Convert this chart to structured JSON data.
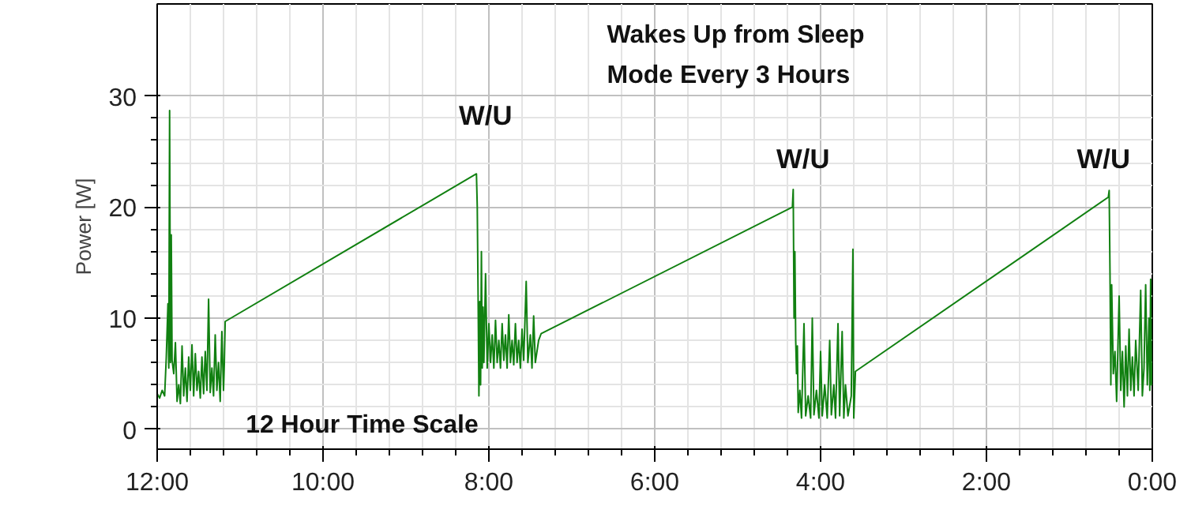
{
  "chart_data": {
    "type": "line",
    "ylabel": "Power [W]",
    "xlim": [
      12,
      0
    ],
    "xticks": [
      {
        "value": 12,
        "label": "12:00"
      },
      {
        "value": 10,
        "label": "10:00"
      },
      {
        "value": 8,
        "label": "8:00"
      },
      {
        "value": 6,
        "label": "6:00"
      },
      {
        "value": 4,
        "label": "4:00"
      },
      {
        "value": 2,
        "label": "2:00"
      },
      {
        "value": 0,
        "label": "0:00"
      }
    ],
    "ylim": [
      -1.8,
      38.3
    ],
    "yticks": [
      0,
      10,
      20,
      30
    ],
    "grid": true,
    "annotations": [
      "W/U",
      "W/U",
      "W/U",
      "Wakes Up from Sleep\nMode Every 3 Hours",
      "12 Hour Time Scale"
    ],
    "series": [
      {
        "color": "#118011",
        "x": [
          12.0,
          11.97,
          11.94,
          11.91,
          11.89,
          11.87,
          11.86,
          11.85,
          11.84,
          11.83,
          11.82,
          11.8,
          11.78,
          11.76,
          11.74,
          11.72,
          11.7,
          11.68,
          11.66,
          11.64,
          11.62,
          11.6,
          11.58,
          11.56,
          11.54,
          11.52,
          11.5,
          11.48,
          11.46,
          11.44,
          11.42,
          11.4,
          11.38,
          11.36,
          11.34,
          11.32,
          11.3,
          11.28,
          11.26,
          11.24,
          11.22,
          11.2,
          11.19,
          11.18,
          8.15,
          8.14,
          8.13,
          8.12,
          8.11,
          8.1,
          8.09,
          8.08,
          8.07,
          8.06,
          8.04,
          8.02,
          8.0,
          7.98,
          7.96,
          7.94,
          7.92,
          7.9,
          7.88,
          7.86,
          7.84,
          7.82,
          7.8,
          7.78,
          7.76,
          7.74,
          7.72,
          7.7,
          7.68,
          7.66,
          7.64,
          7.62,
          7.6,
          7.58,
          7.55,
          7.53,
          7.5,
          7.48,
          7.46,
          7.44,
          7.4,
          7.37,
          4.34,
          4.33,
          4.32,
          4.31,
          4.3,
          4.29,
          4.28,
          4.27,
          4.25,
          4.23,
          4.2,
          4.18,
          4.15,
          4.12,
          4.1,
          4.08,
          4.05,
          4.02,
          4.0,
          3.98,
          3.95,
          3.92,
          3.89,
          3.87,
          3.84,
          3.82,
          3.79,
          3.77,
          3.74,
          3.72,
          3.7,
          3.67,
          3.63,
          3.61,
          3.6,
          3.59,
          3.58,
          0.53,
          0.52,
          0.51,
          0.5,
          0.49,
          0.47,
          0.45,
          0.43,
          0.4,
          0.38,
          0.36,
          0.34,
          0.32,
          0.3,
          0.28,
          0.26,
          0.24,
          0.22,
          0.2,
          0.17,
          0.14,
          0.12,
          0.1,
          0.08,
          0.06,
          0.04,
          0.03,
          0.02,
          0.01,
          0.0
        ],
        "values": [
          3.2,
          2.8,
          3.5,
          3.0,
          6.5,
          11.3,
          5.5,
          28.7,
          6.0,
          17.5,
          6.2,
          5.0,
          7.8,
          2.5,
          4.0,
          2.3,
          7.5,
          3.0,
          5.5,
          2.5,
          6.5,
          3.5,
          7.6,
          3.0,
          6.8,
          3.5,
          5.2,
          2.8,
          6.5,
          3.2,
          7.0,
          3.5,
          11.7,
          3.3,
          5.5,
          3.0,
          8.5,
          3.5,
          6.0,
          2.5,
          8.8,
          3.5,
          6.0,
          9.7,
          23.0,
          20.0,
          12.0,
          3.0,
          11.5,
          4.0,
          16.0,
          5.5,
          11.0,
          6.0,
          14.0,
          5.5,
          9.5,
          6.0,
          8.5,
          5.5,
          9.8,
          6.0,
          8.0,
          5.5,
          9.5,
          6.2,
          8.5,
          5.5,
          10.3,
          6.0,
          8.0,
          5.8,
          9.5,
          6.0,
          8.0,
          5.5,
          9.0,
          6.2,
          13.3,
          6.0,
          8.5,
          5.5,
          10.2,
          6.0,
          8.0,
          8.6,
          20.0,
          21.6,
          10.0,
          16.0,
          8.0,
          5.0,
          7.5,
          1.5,
          3.5,
          1.0,
          9.5,
          1.2,
          3.0,
          1.0,
          10.0,
          1.3,
          3.5,
          1.0,
          7.0,
          1.2,
          4.0,
          1.0,
          8.0,
          1.3,
          4.0,
          1.0,
          9.5,
          1.2,
          8.8,
          1.0,
          4.0,
          1.2,
          3.0,
          16.2,
          1.0,
          3.0,
          5.2,
          20.9,
          21.5,
          14.0,
          4.0,
          13.0,
          5.0,
          7.0,
          2.5,
          12.0,
          3.5,
          7.0,
          2.0,
          7.5,
          3.0,
          9.0,
          3.5,
          6.5,
          3.0,
          8.0,
          3.5,
          12.5,
          3.0,
          5.5,
          13.0,
          4.0,
          10.0,
          3.5,
          13.5,
          4.0,
          6.0
        ]
      }
    ]
  }
}
